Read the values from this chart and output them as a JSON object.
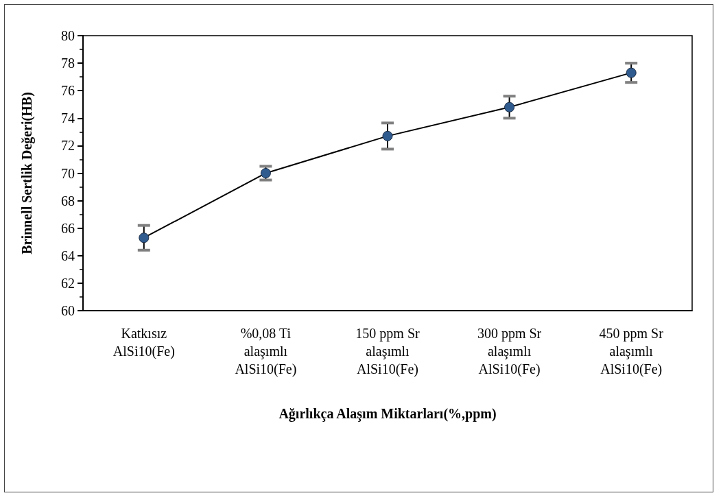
{
  "chart_data": {
    "type": "line",
    "xlabel": "Ağırlıkça Alaşım Miktarları(%,ppm)",
    "ylabel": "Brinnell Sertlik Değeri(HB)",
    "categories": [
      "Katkısız\nAlSi10(Fe)",
      "%0,08 Ti\nalaşımlı\nAlSi10(Fe)",
      "150 ppm Sr\nalaşımlı\nAlSi10(Fe)",
      "300 ppm Sr\nalaşımlı\nAlSi10(Fe)",
      "450 ppm Sr\nalaşımlı\nAlSi10(Fe)"
    ],
    "series": [
      {
        "color": "#2f5b8f",
        "values": [
          65.3,
          70.0,
          72.7,
          74.8,
          77.3
        ],
        "errors": [
          0.9,
          0.5,
          0.95,
          0.8,
          0.7
        ]
      }
    ],
    "ylim": [
      60,
      80
    ],
    "yticks": [
      60,
      62,
      64,
      66,
      68,
      70,
      72,
      74,
      76,
      78,
      80
    ],
    "marker": "circle",
    "line_style": "solid"
  }
}
